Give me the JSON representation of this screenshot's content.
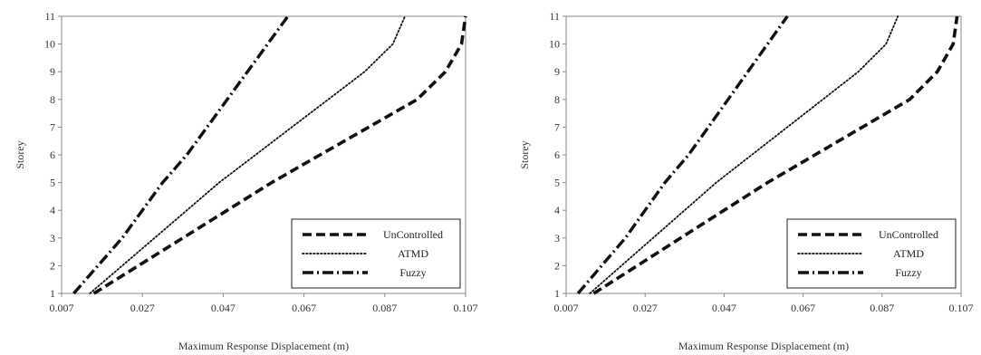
{
  "chart_data": [
    {
      "type": "line",
      "title": "",
      "xlabel": "Maximum Response Displacement (m)",
      "ylabel": "Storey",
      "xlim": [
        0.007,
        0.107
      ],
      "ylim": [
        1,
        11
      ],
      "xticks": [
        "0.007",
        "0.027",
        "0.047",
        "0.067",
        "0.087",
        "0.107"
      ],
      "yticks": [
        "1",
        "2",
        "3",
        "4",
        "5",
        "6",
        "7",
        "8",
        "9",
        "10",
        "11"
      ],
      "grid": false,
      "legend_position": "bottom-right",
      "series": [
        {
          "name": "UnControlled",
          "style": "dashed",
          "x": [
            0.015,
            0.026,
            0.037,
            0.048,
            0.059,
            0.071,
            0.083,
            0.095,
            0.102,
            0.106,
            0.107
          ],
          "y": [
            1,
            2,
            3,
            4,
            5,
            6,
            7,
            8,
            9,
            10,
            11
          ]
        },
        {
          "name": "ATMD",
          "style": "dotted",
          "x": [
            0.014,
            0.022,
            0.03,
            0.038,
            0.046,
            0.055,
            0.064,
            0.073,
            0.082,
            0.089,
            0.092
          ],
          "y": [
            1,
            2,
            3,
            4,
            5,
            6,
            7,
            8,
            9,
            10,
            11
          ]
        },
        {
          "name": "Fuzzy",
          "style": "dashdot",
          "x": [
            0.01,
            0.016,
            0.022,
            0.027,
            0.032,
            0.038,
            0.043,
            0.048,
            0.053,
            0.058,
            0.063
          ],
          "y": [
            1,
            2,
            3,
            4,
            5,
            6,
            7,
            8,
            9,
            10,
            11
          ]
        }
      ]
    },
    {
      "type": "line",
      "title": "",
      "xlabel": "Maximum Response Displacement (m)",
      "ylabel": "Storey",
      "xlim": [
        0.007,
        0.107
      ],
      "ylim": [
        1,
        11
      ],
      "xticks": [
        "0.007",
        "0.027",
        "0.047",
        "0.067",
        "0.087",
        "0.107"
      ],
      "yticks": [
        "1",
        "2",
        "3",
        "4",
        "5",
        "6",
        "7",
        "8",
        "9",
        "10",
        "11"
      ],
      "grid": false,
      "legend_position": "bottom-right",
      "series": [
        {
          "name": "UnControlled",
          "style": "dashed",
          "x": [
            0.014,
            0.025,
            0.036,
            0.047,
            0.058,
            0.07,
            0.082,
            0.094,
            0.101,
            0.105,
            0.106
          ],
          "y": [
            1,
            2,
            3,
            4,
            5,
            6,
            7,
            8,
            9,
            10,
            11
          ]
        },
        {
          "name": "ATMD",
          "style": "dotted",
          "x": [
            0.013,
            0.021,
            0.029,
            0.037,
            0.045,
            0.054,
            0.063,
            0.072,
            0.081,
            0.088,
            0.091
          ],
          "y": [
            1,
            2,
            3,
            4,
            5,
            6,
            7,
            8,
            9,
            10,
            11
          ]
        },
        {
          "name": "Fuzzy",
          "style": "dashdot",
          "x": [
            0.01,
            0.016,
            0.022,
            0.027,
            0.032,
            0.038,
            0.043,
            0.048,
            0.053,
            0.058,
            0.063
          ],
          "y": [
            1,
            2,
            3,
            4,
            5,
            6,
            7,
            8,
            9,
            10,
            11
          ]
        }
      ]
    }
  ]
}
